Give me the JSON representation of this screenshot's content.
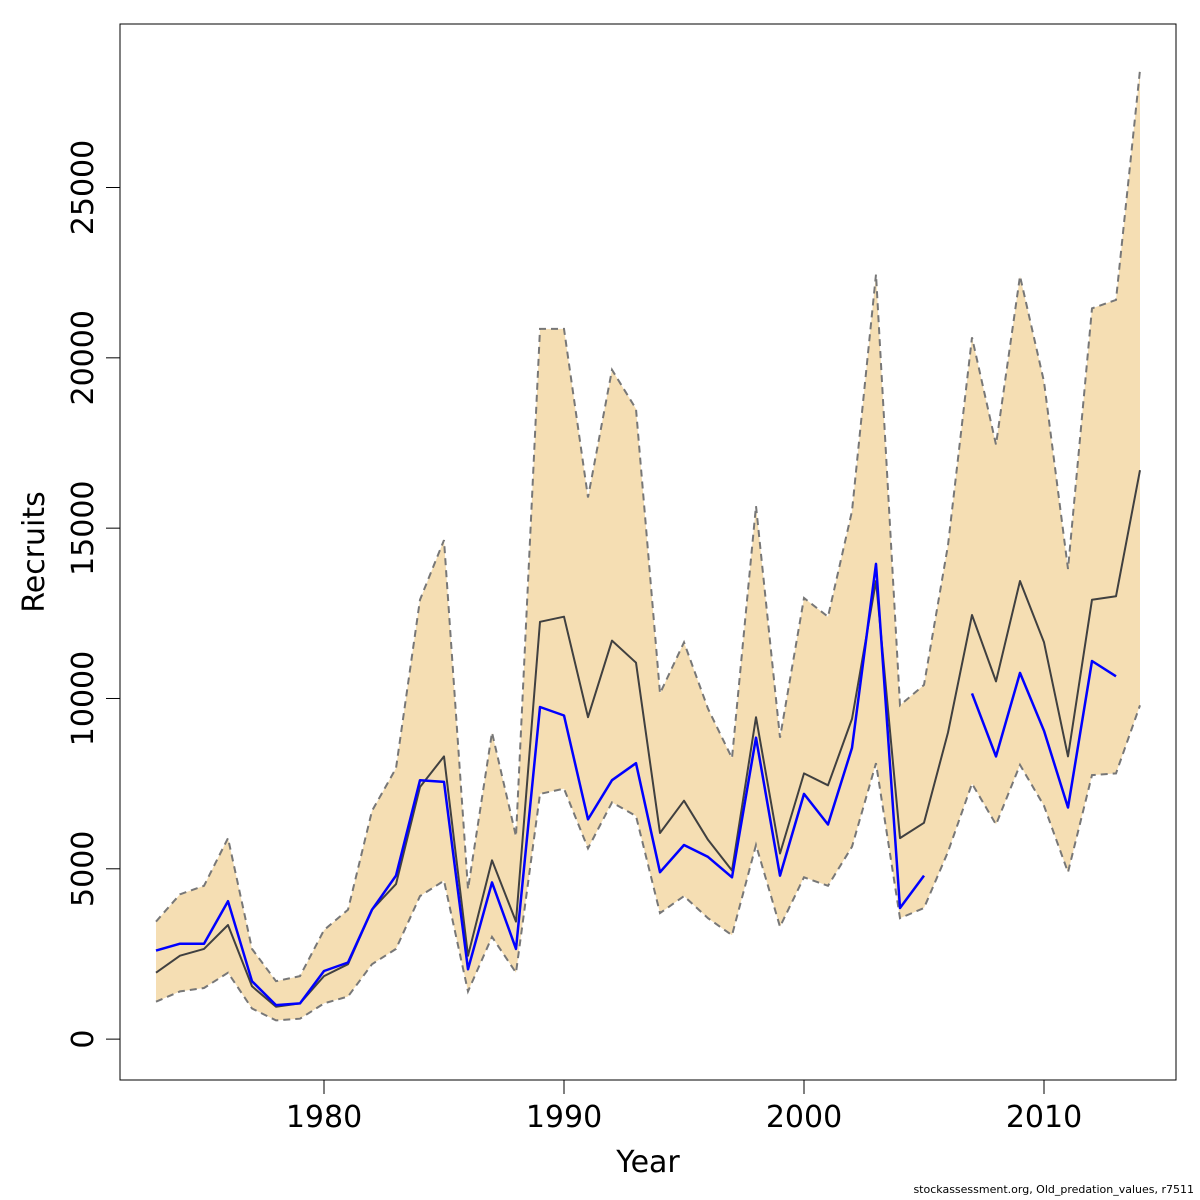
{
  "chart_data": {
    "type": "area",
    "xlabel": "Year",
    "ylabel": "Recruits",
    "xlim": [
      1971.5,
      2015.5
    ],
    "ylim": [
      -1200,
      29800
    ],
    "x_ticks": [
      1980,
      1990,
      2000,
      2010
    ],
    "y_ticks": [
      0,
      5000,
      10000,
      15000,
      20000,
      25000
    ],
    "grid": false,
    "legend": "none",
    "x": [
      1973,
      1974,
      1975,
      1976,
      1977,
      1978,
      1979,
      1980,
      1981,
      1982,
      1983,
      1984,
      1985,
      1986,
      1987,
      1988,
      1989,
      1990,
      1991,
      1992,
      1993,
      1994,
      1995,
      1996,
      1997,
      1998,
      1999,
      2000,
      2001,
      2002,
      2003,
      2004,
      2005,
      2006,
      2007,
      2008,
      2009,
      2010,
      2011,
      2012,
      2013,
      2014
    ],
    "series": [
      {
        "color": "#f5deb3",
        "style": "band-dashed-border",
        "lower": [
          1100,
          1400,
          1500,
          1950,
          900,
          550,
          600,
          1050,
          1250,
          2200,
          2650,
          4200,
          4650,
          1400,
          3000,
          1950,
          7200,
          7350,
          5600,
          6950,
          6550,
          3700,
          4200,
          3550,
          3050,
          5700,
          3300,
          4750,
          4500,
          5650,
          8100,
          3550,
          3850,
          5500,
          7500,
          6300,
          8050,
          6850,
          4900,
          7750,
          7800,
          9800
        ],
        "upper": [
          3450,
          4250,
          4500,
          5900,
          2650,
          1700,
          1850,
          3200,
          3800,
          6700,
          7950,
          12900,
          14650,
          4400,
          9000,
          5950,
          20850,
          20850,
          15900,
          19650,
          18500,
          10150,
          11650,
          9700,
          8250,
          15650,
          8850,
          12950,
          12400,
          15500,
          22450,
          9800,
          10400,
          14500,
          20600,
          17450,
          22400,
          19300,
          13800,
          21450,
          21700,
          28450
        ]
      },
      {
        "color": "#404040",
        "style": "solid",
        "values": [
          1950,
          2450,
          2650,
          3350,
          1550,
          950,
          1050,
          1850,
          2200,
          3800,
          4550,
          7400,
          8300,
          2450,
          5250,
          3450,
          12250,
          12400,
          9450,
          11700,
          11050,
          6050,
          7000,
          5850,
          4950,
          9450,
          5450,
          7800,
          7450,
          9400,
          13450,
          5900,
          6350,
          9000,
          12450,
          10500,
          13450,
          11650,
          8300,
          12900,
          13000,
          16700
        ]
      },
      {
        "color": "#0000ff",
        "style": "solid",
        "values": [
          2600,
          2800,
          2800,
          4050,
          1700,
          1000,
          1050,
          2000,
          2250,
          3800,
          4800,
          7600,
          7550,
          2050,
          4600,
          2650,
          9750,
          9500,
          6450,
          7600,
          8100,
          4900,
          5700,
          5350,
          4750,
          8850,
          4800,
          7200,
          6300,
          8550,
          13950,
          3850,
          4800,
          null,
          10150,
          8300,
          10750,
          9050,
          6800,
          11100,
          10650,
          null
        ]
      }
    ]
  },
  "footer": "stockassessment.org, Old_predation_values, r7511"
}
